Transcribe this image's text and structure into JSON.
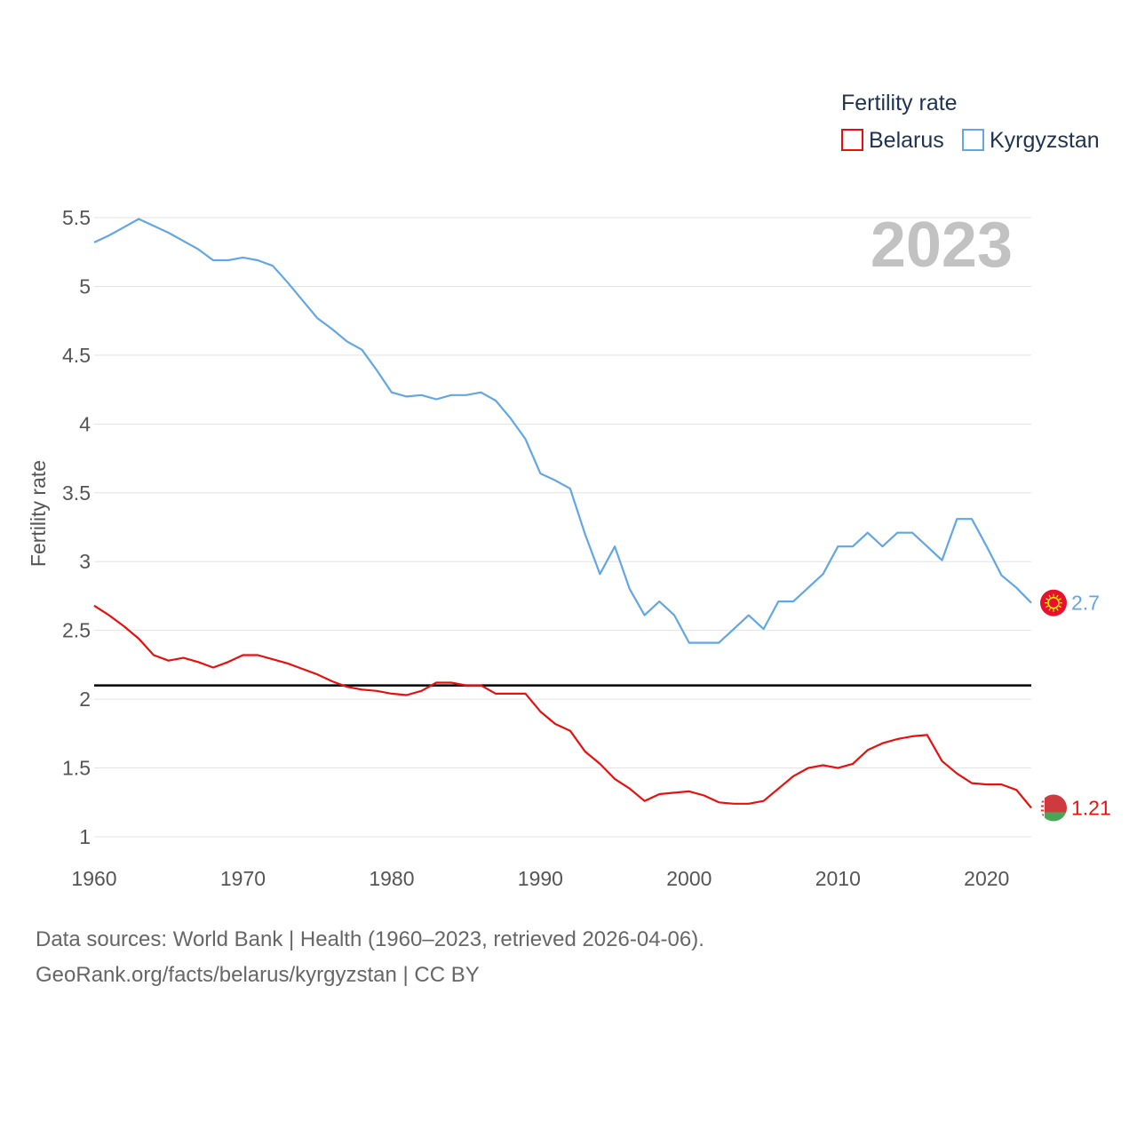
{
  "chart_data": {
    "type": "line",
    "title": "Fertility rate",
    "ylabel": "Fertility rate",
    "xlabel": "",
    "year_display": "2023",
    "xlim": [
      1960,
      2023
    ],
    "ylim": [
      1,
      5.5
    ],
    "xticks": [
      1960,
      1970,
      1980,
      1990,
      2000,
      2010,
      2020
    ],
    "yticks": [
      1,
      1.5,
      2,
      2.5,
      3,
      3.5,
      4,
      4.5,
      5,
      5.5
    ],
    "ytick_labels": [
      "1",
      "1.5",
      "2",
      "2.5",
      "3",
      "3.5",
      "4",
      "4.5",
      "5",
      "5.5"
    ],
    "reference_line": 2.1,
    "x": [
      1960,
      1961,
      1962,
      1963,
      1964,
      1965,
      1966,
      1967,
      1968,
      1969,
      1970,
      1971,
      1972,
      1973,
      1974,
      1975,
      1976,
      1977,
      1978,
      1979,
      1980,
      1981,
      1982,
      1983,
      1984,
      1985,
      1986,
      1987,
      1988,
      1989,
      1990,
      1991,
      1992,
      1993,
      1994,
      1995,
      1996,
      1997,
      1998,
      1999,
      2000,
      2001,
      2002,
      2003,
      2004,
      2005,
      2006,
      2007,
      2008,
      2009,
      2010,
      2011,
      2012,
      2013,
      2014,
      2015,
      2016,
      2017,
      2018,
      2019,
      2020,
      2021,
      2022,
      2023
    ],
    "series": [
      {
        "name": "Belarus",
        "color": "#e8100e",
        "end_label": "1.21",
        "flag_icon": "belarus-flag-icon",
        "values": [
          2.68,
          2.61,
          2.53,
          2.44,
          2.32,
          2.28,
          2.3,
          2.27,
          2.23,
          2.27,
          2.32,
          2.32,
          2.29,
          2.26,
          2.22,
          2.18,
          2.13,
          2.09,
          2.07,
          2.06,
          2.04,
          2.03,
          2.06,
          2.12,
          2.12,
          2.1,
          2.1,
          2.04,
          2.04,
          2.04,
          1.91,
          1.82,
          1.77,
          1.62,
          1.53,
          1.42,
          1.35,
          1.26,
          1.31,
          1.32,
          1.33,
          1.3,
          1.25,
          1.24,
          1.24,
          1.26,
          1.35,
          1.44,
          1.5,
          1.52,
          1.5,
          1.53,
          1.63,
          1.68,
          1.71,
          1.73,
          1.74,
          1.55,
          1.46,
          1.39,
          1.38,
          1.38,
          1.34,
          1.21
        ]
      },
      {
        "name": "Kyrgyzstan",
        "color": "#62a6e3",
        "end_label": "2.7",
        "flag_icon": "kyrgyzstan-flag-icon",
        "values": [
          5.32,
          5.37,
          5.43,
          5.49,
          5.44,
          5.39,
          5.33,
          5.27,
          5.19,
          5.19,
          5.21,
          5.19,
          5.15,
          5.03,
          4.9,
          4.77,
          4.69,
          4.6,
          4.54,
          4.39,
          4.23,
          4.2,
          4.21,
          4.18,
          4.21,
          4.21,
          4.23,
          4.17,
          4.04,
          3.89,
          3.64,
          3.59,
          3.53,
          3.2,
          2.91,
          3.11,
          2.8,
          2.61,
          2.71,
          2.61,
          2.41,
          2.41,
          2.41,
          2.51,
          2.61,
          2.51,
          2.71,
          2.71,
          2.81,
          2.91,
          3.11,
          3.11,
          3.21,
          3.11,
          3.21,
          3.21,
          3.11,
          3.01,
          3.31,
          3.31,
          3.11,
          2.9,
          2.81,
          2.7
        ]
      }
    ]
  },
  "source": {
    "line1": "Data sources: World Bank | Health (1960–2023, retrieved 2026-04-06).",
    "line2": "GeoRank.org/facts/belarus/kyrgyzstan | CC BY"
  }
}
